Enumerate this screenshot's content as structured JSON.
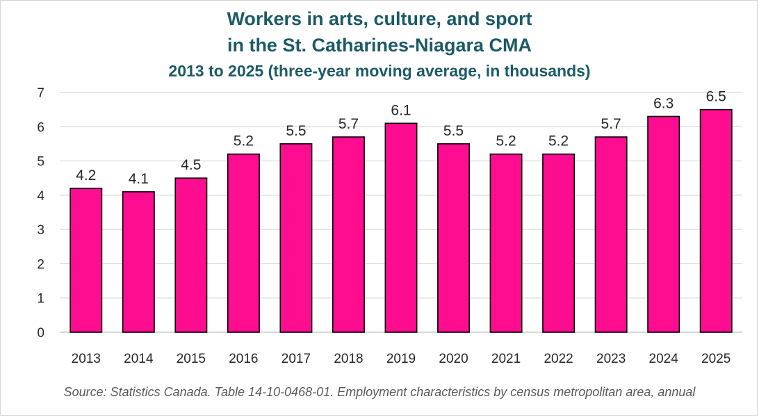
{
  "chart_data": {
    "type": "bar",
    "title": "Workers in arts, culture, and sport",
    "title_line2": "in the St. Catharines-Niagara CMA",
    "subtitle": "2013 to 2025 (three-year moving average, in thousands)",
    "categories": [
      "2013",
      "2014",
      "2015",
      "2016",
      "2017",
      "2018",
      "2019",
      "2020",
      "2021",
      "2022",
      "2023",
      "2024",
      "2025"
    ],
    "values": [
      4.2,
      4.1,
      4.5,
      5.2,
      5.5,
      5.7,
      6.1,
      5.5,
      5.2,
      5.2,
      5.7,
      6.3,
      6.5
    ],
    "data_labels": [
      "4.2",
      "4.1",
      "4.5",
      "5.2",
      "5.5",
      "5.7",
      "6.1",
      "5.5",
      "5.2",
      "5.2",
      "5.7",
      "6.3",
      "6.5"
    ],
    "y_ticks": [
      "0",
      "1",
      "2",
      "3",
      "4",
      "5",
      "6",
      "7"
    ],
    "ylim": [
      0,
      7
    ],
    "xlabel": "",
    "ylabel": "",
    "grid": true,
    "legend": "none",
    "bar_color": "#ff0d91",
    "bar_edge_color": "#000000",
    "title_color": "#1b5a66",
    "source": "Source: Statistics Canada. Table 14-10-0468-01. Employment characteristics by census metropolitan area, annual"
  }
}
